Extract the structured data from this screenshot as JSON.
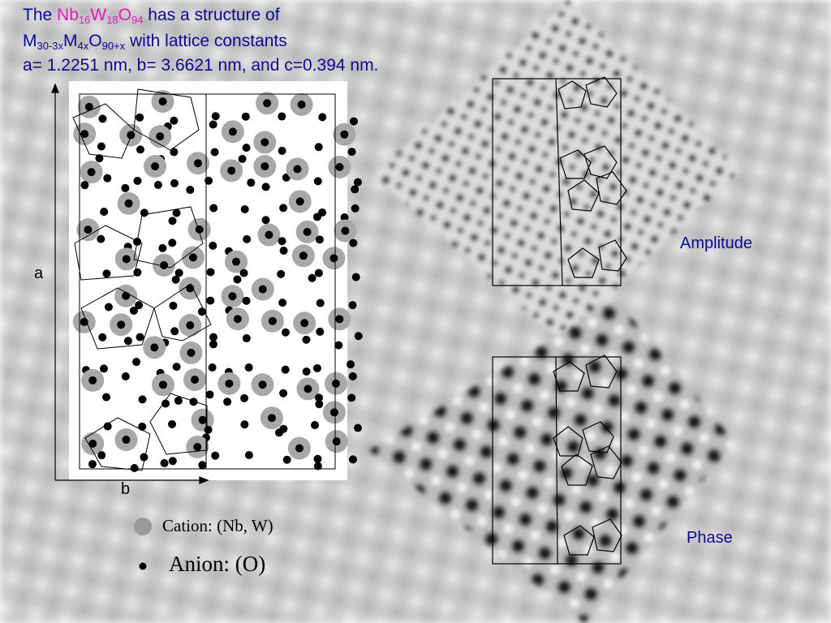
{
  "title": {
    "line1": {
      "prefix": "The ",
      "formula": [
        "Nb",
        "16",
        "W",
        "18",
        "O",
        "94"
      ],
      "suffix": " has a structure of"
    },
    "line2": {
      "formula": [
        "M",
        "30-3x",
        "M",
        "4x",
        "O",
        "90+x"
      ],
      "suffix": " with lattice constants"
    },
    "line3": "a= 1.2251 nm, b= 3.6621 nm, and c=0.394 nm."
  },
  "structure": {
    "axis_a": "a",
    "axis_b": "b"
  },
  "images": {
    "amplitude": "Amplitude",
    "phase": "Phase"
  },
  "legend": {
    "cation": "Cation: (Nb, W)",
    "anion": "Anion: (O)"
  }
}
